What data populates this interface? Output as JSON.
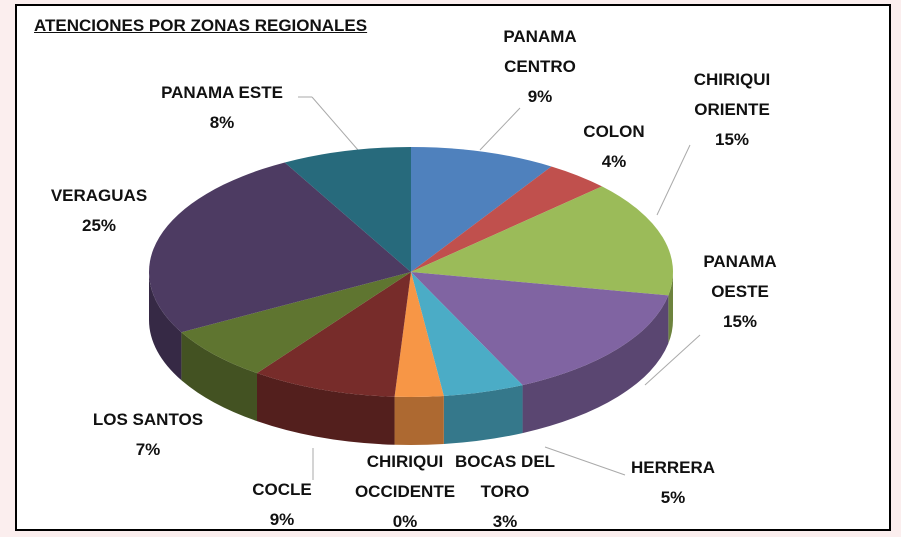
{
  "chart_data": {
    "type": "pie3d",
    "title": "ATENCIONES POR ZONAS REGIONALES",
    "categories": [
      "PANAMA CENTRO",
      "COLON",
      "CHIRIQUI ORIENTE",
      "PANAMA OESTE",
      "HERRERA",
      "BOCAS DEL TORO",
      "CHIRIQUI OCCIDENTE",
      "COCLE",
      "LOS SANTOS",
      "VERAGUAS",
      "PANAMA ESTE"
    ],
    "values": [
      9,
      4,
      15,
      15,
      5,
      3,
      0,
      9,
      7,
      25,
      8
    ],
    "value_labels": [
      "9%",
      "4%",
      "15%",
      "15%",
      "5%",
      "3%",
      "0%",
      "9%",
      "7%",
      "25%",
      "8%"
    ],
    "colors": [
      "#4f81bd",
      "#c0504d",
      "#9bbb59",
      "#8064a2",
      "#4bacc6",
      "#f79646",
      "#2c4d75",
      "#772c2a",
      "#5f7530",
      "#4d3b62",
      "#276a7c"
    ]
  }
}
